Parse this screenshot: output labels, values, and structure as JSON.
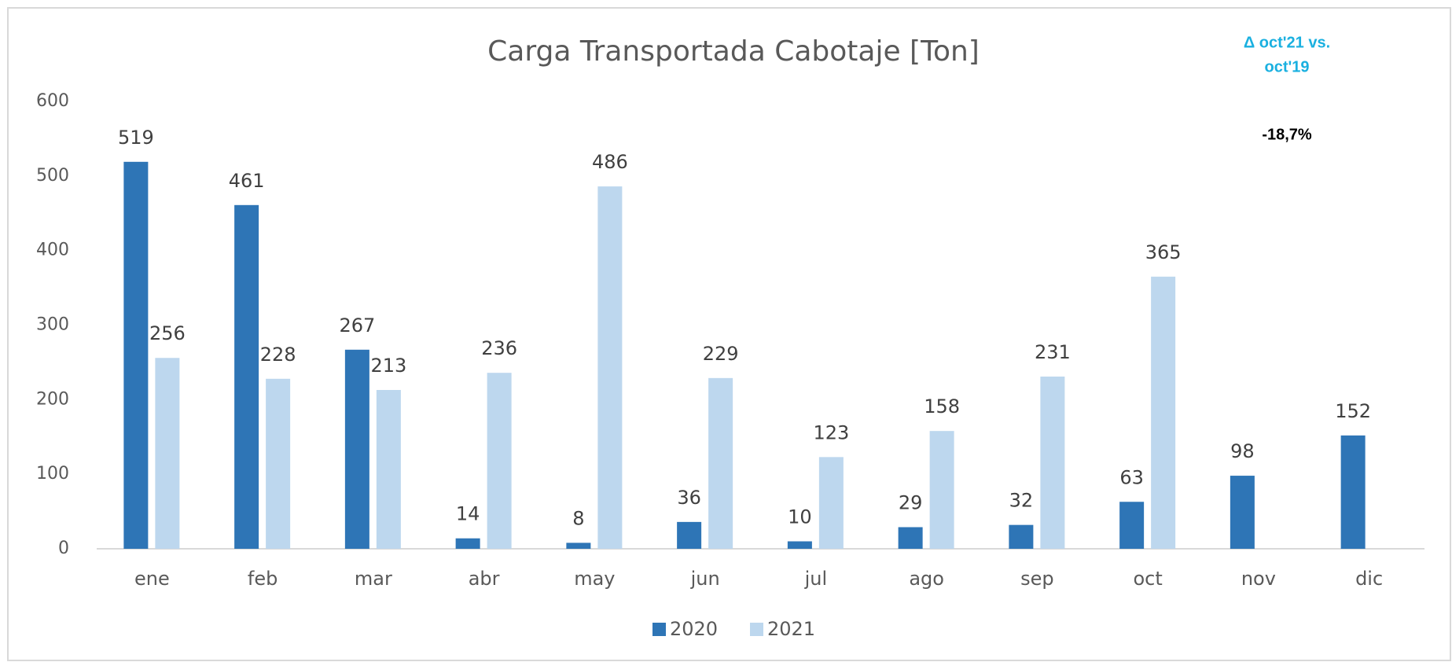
{
  "chart_data": {
    "type": "bar",
    "title": "Carga Transportada Cabotaje [Ton]",
    "categories": [
      "ene",
      "feb",
      "mar",
      "abr",
      "may",
      "jun",
      "jul",
      "ago",
      "sep",
      "oct",
      "nov",
      "dic"
    ],
    "series": [
      {
        "name": "2020",
        "color": "#2e75b6",
        "values": [
          519,
          461,
          267,
          14,
          8,
          36,
          10,
          29,
          32,
          63,
          98,
          152
        ]
      },
      {
        "name": "2021",
        "color": "#bdd7ee",
        "values": [
          256,
          228,
          213,
          236,
          486,
          229,
          123,
          158,
          231,
          365,
          null,
          null
        ]
      }
    ],
    "ylim": [
      0,
      600
    ],
    "yticks": [
      0,
      100,
      200,
      300,
      400,
      500,
      600
    ],
    "grid": false,
    "annotation": {
      "lines": [
        "Δ oct'21 vs.",
        "oct'19"
      ],
      "value": "-18,7%"
    }
  }
}
